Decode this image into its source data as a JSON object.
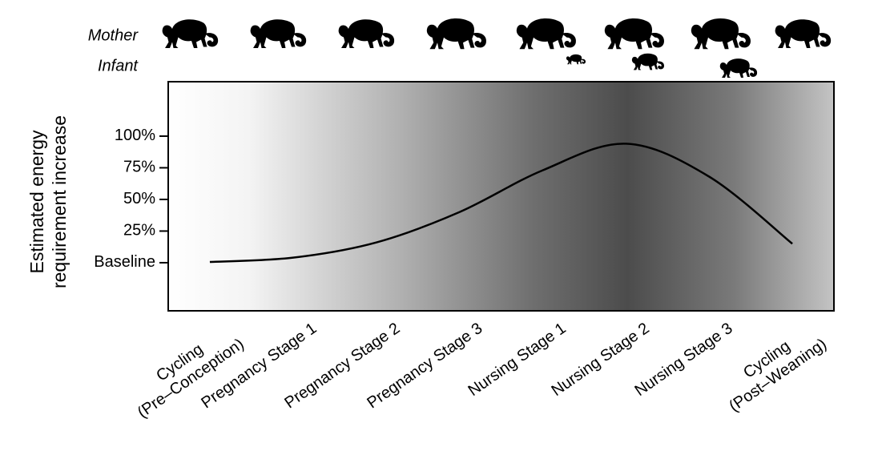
{
  "chart_data": {
    "type": "line",
    "row_labels": [
      "Mother",
      "Infant"
    ],
    "y_label": [
      "Estimated energy",
      "requirement increase"
    ],
    "categories": [
      "Cycling\n(Pre–Conception)",
      "Pregnancy Stage 1",
      "Pregnancy Stage 2",
      "Pregnancy Stage 3",
      "Nursing Stage 1",
      "Nursing Stage 2",
      "Nursing Stage 3",
      "Cycling\n(Post–Weaning)"
    ],
    "values": [
      0.6,
      4,
      16,
      40,
      73,
      94,
      68,
      15
    ],
    "color": "#000000",
    "ylim": [
      -38,
      143
    ],
    "yticks": [
      {
        "value": 0,
        "label": "Baseline"
      },
      {
        "value": 25,
        "label": "25%"
      },
      {
        "value": 50,
        "label": "50%"
      },
      {
        "value": 75,
        "label": "75%"
      },
      {
        "value": 100,
        "label": "100%"
      }
    ]
  }
}
